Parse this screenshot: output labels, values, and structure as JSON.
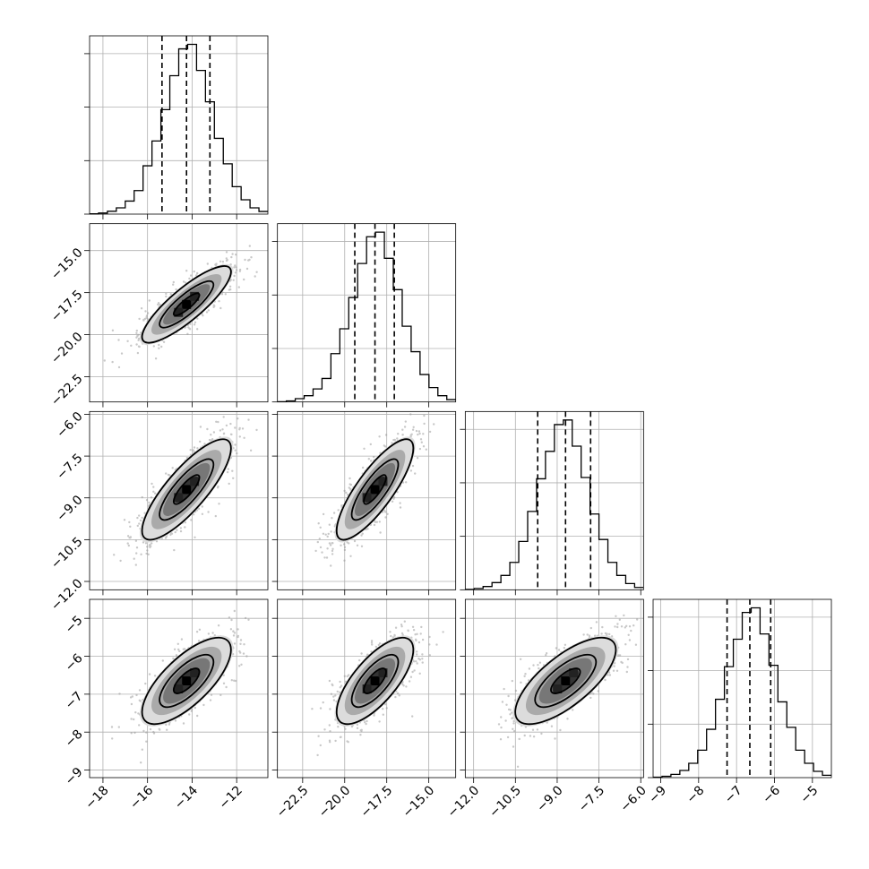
{
  "chart_data": {
    "type": "corner",
    "grid": true,
    "quantile_lines": "dashed",
    "parameters": [
      {
        "index": 0,
        "range": [
          -18.6,
          -10.6
        ],
        "ticks": [
          -18,
          -16,
          -14,
          -12
        ],
        "tick_labels": [
          "−18",
          "−16",
          "−14",
          "−12"
        ],
        "quantiles": [
          -15.35,
          -14.25,
          -13.2
        ],
        "histogram": [
          2,
          8,
          22,
          48,
          100,
          180,
          370,
          560,
          800,
          1060,
          1265,
          1300,
          1100,
          860,
          580,
          385,
          210,
          110,
          48,
          20
        ],
        "hist_ymax": 1300
      },
      {
        "index": 1,
        "range": [
          -24.0,
          -13.4
        ],
        "ticks": [
          -22.5,
          -20.0,
          -17.5,
          -15.0
        ],
        "tick_labels": [
          "−22.5",
          "−20.0",
          "−17.5",
          "−15.0"
        ],
        "quantiles": [
          -19.4,
          -18.2,
          -17.05
        ],
        "histogram": [
          2,
          8,
          25,
          48,
          100,
          180,
          370,
          560,
          800,
          1060,
          1265,
          1300,
          1100,
          860,
          580,
          385,
          210,
          110,
          48,
          18
        ],
        "hist_ymax": 1300
      },
      {
        "index": 2,
        "range": [
          -12.3,
          -5.9
        ],
        "ticks": [
          -12.0,
          -10.5,
          -9.0,
          -7.5,
          -6.0
        ],
        "tick_labels": [
          "−12.0",
          "−10.5",
          "−9.0",
          "−7.5",
          "−6.0"
        ],
        "quantiles": [
          -9.7,
          -8.7,
          -7.8
        ],
        "histogram": [
          3,
          10,
          25,
          55,
          110,
          210,
          370,
          600,
          850,
          1060,
          1265,
          1300,
          1100,
          860,
          580,
          385,
          210,
          110,
          48,
          18
        ],
        "hist_ymax": 1300
      },
      {
        "index": 3,
        "range": [
          -9.2,
          -4.5
        ],
        "ticks": [
          -9,
          -8,
          -7,
          -6,
          -5
        ],
        "tick_labels": [
          "−9",
          "−8",
          "−7",
          "−6",
          "−5"
        ],
        "quantiles": [
          -7.25,
          -6.65,
          -6.1
        ],
        "histogram": [
          3,
          10,
          25,
          55,
          110,
          210,
          370,
          600,
          850,
          1060,
          1265,
          1300,
          1100,
          860,
          580,
          385,
          210,
          110,
          48,
          18
        ],
        "hist_ymax": 1300
      }
    ],
    "pairs": [
      {
        "x": 0,
        "y": 1,
        "center": [
          -14.25,
          -18.2
        ],
        "sigma": [
          1.05,
          1.2
        ],
        "rho": 0.85
      },
      {
        "x": 0,
        "y": 2,
        "center": [
          -14.25,
          -8.7
        ],
        "sigma": [
          1.05,
          0.95
        ],
        "rho": 0.82
      },
      {
        "x": 1,
        "y": 2,
        "center": [
          -18.2,
          -8.7
        ],
        "sigma": [
          1.2,
          0.95
        ],
        "rho": 0.82
      },
      {
        "x": 0,
        "y": 3,
        "center": [
          -14.25,
          -6.65
        ],
        "sigma": [
          1.05,
          0.6
        ],
        "rho": 0.72
      },
      {
        "x": 1,
        "y": 3,
        "center": [
          -18.2,
          -6.65
        ],
        "sigma": [
          1.2,
          0.6
        ],
        "rho": 0.72
      },
      {
        "x": 2,
        "y": 3,
        "center": [
          -8.7,
          -6.65
        ],
        "sigma": [
          0.95,
          0.6
        ],
        "rho": 0.72
      }
    ]
  }
}
